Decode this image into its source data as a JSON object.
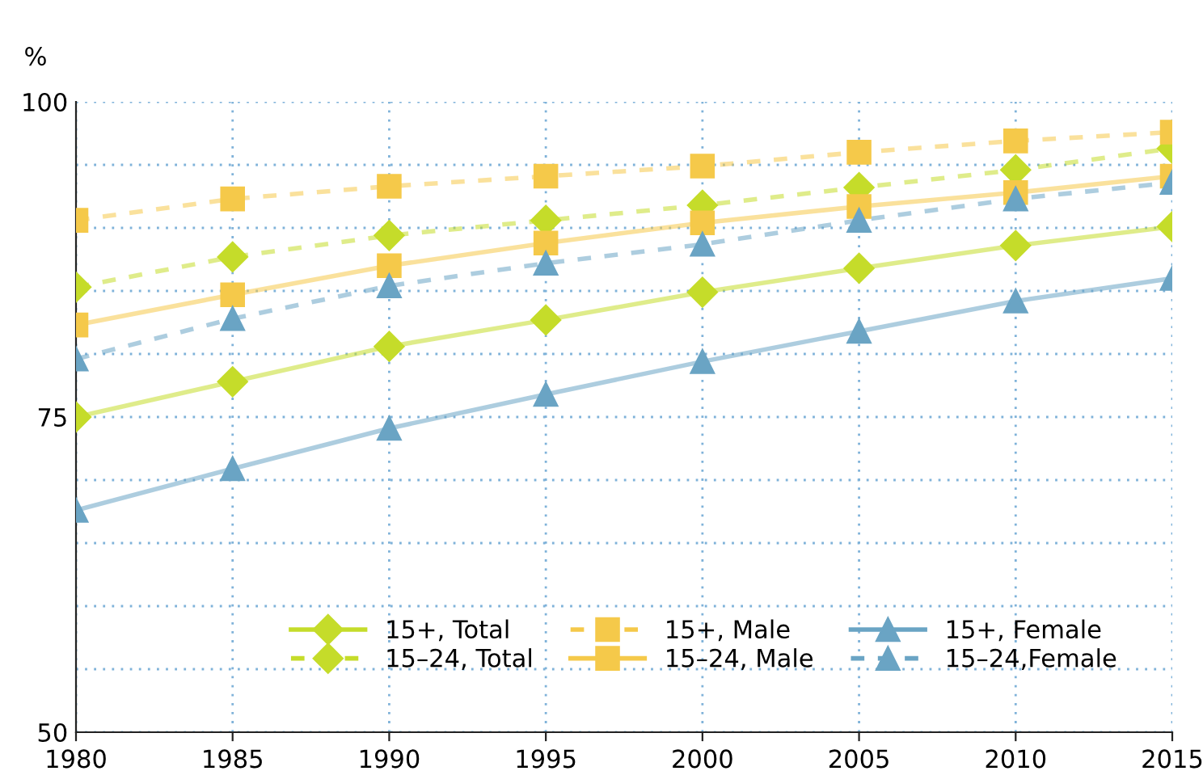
{
  "chart_data": {
    "type": "line",
    "ylabel": "%",
    "x": [
      1980,
      1985,
      1990,
      1995,
      2000,
      2005,
      2010,
      2015
    ],
    "xlim": [
      1980,
      2015
    ],
    "xticks": [
      1980,
      1985,
      1990,
      1995,
      2000,
      2005,
      2010,
      2015
    ],
    "ylim": [
      50,
      100
    ],
    "yticks": [
      50,
      {
        "value": 55,
        "label": null
      },
      {
        "value": 60,
        "label": null
      },
      {
        "value": 65,
        "label": null
      },
      {
        "value": 70,
        "label": null
      },
      75,
      {
        "value": 80,
        "label": null
      },
      {
        "value": 85,
        "label": null
      },
      {
        "value": 90,
        "label": null
      },
      {
        "value": 95,
        "label": null
      },
      100
    ],
    "grid": true,
    "legend": "bottom right",
    "series": [
      {
        "name": "15+, Total",
        "color": "#c5dc2a",
        "marker": "diamond",
        "line_style": "solid",
        "values": [
          75.0,
          77.8,
          80.6,
          82.7,
          84.9,
          86.8,
          88.6,
          90.1
        ]
      },
      {
        "name": "15–24, Total",
        "color": "#c5dc2a",
        "marker": "diamond",
        "line_style": "dashed",
        "values": [
          85.3,
          87.7,
          89.4,
          90.6,
          91.8,
          93.2,
          94.6,
          96.3
        ]
      },
      {
        "name": "15+, Male",
        "color": "#f5c94a",
        "marker": "square",
        "line_style": "dashed",
        "values": [
          90.6,
          92.3,
          93.3,
          94.1,
          94.9,
          96.0,
          96.9,
          97.6
        ]
      },
      {
        "name": "15–24, Male",
        "color": "#f5c94a",
        "marker": "square",
        "line_style": "solid",
        "values": [
          82.3,
          84.7,
          87.0,
          88.8,
          90.4,
          91.7,
          92.8,
          94.1
        ]
      },
      {
        "name": "15+, Female",
        "color": "#6aa4c4",
        "marker": "triangle",
        "line_style": "solid",
        "values": [
          67.6,
          70.9,
          74.1,
          76.8,
          79.4,
          81.8,
          84.2,
          86.0
        ]
      },
      {
        "name": "15–24,Female",
        "color": "#6aa4c4",
        "marker": "triangle",
        "line_style": "dashed",
        "values": [
          79.6,
          82.8,
          85.4,
          87.2,
          88.7,
          90.6,
          92.3,
          93.6
        ]
      }
    ]
  }
}
